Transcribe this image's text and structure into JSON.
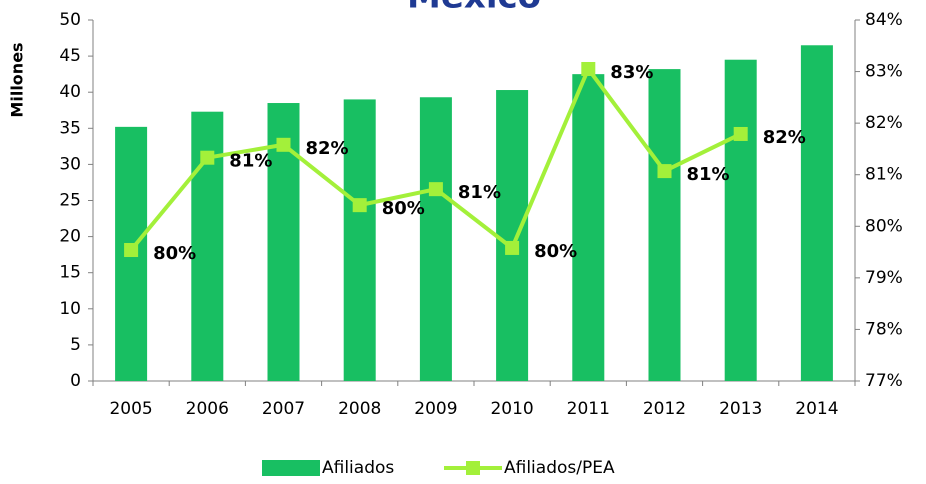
{
  "chart_data": {
    "type": "bar",
    "title": "México",
    "y_label": "Millones",
    "categories": [
      "2005",
      "2006",
      "2007",
      "2008",
      "2009",
      "2010",
      "2011",
      "2012",
      "2013",
      "2014"
    ],
    "series": [
      {
        "name": "Afiliados",
        "type": "bar",
        "color": "#18bf62",
        "values": [
          35.2,
          37.3,
          38.5,
          39.0,
          39.3,
          40.3,
          42.5,
          43.2,
          44.5,
          46.5
        ]
      },
      {
        "name": "Afiliados/PEA",
        "type": "line",
        "axis": "y2",
        "color": "#a3f03a",
        "values": [
          79.54,
          81.33,
          81.58,
          80.41,
          80.72,
          79.58,
          83.05,
          81.07,
          81.79,
          null
        ],
        "value_labels": [
          "80%",
          "81%",
          "82%",
          "80%",
          "81%",
          "80%",
          "83%",
          "81%",
          "82%",
          null
        ]
      }
    ],
    "ylim": [
      0,
      50
    ],
    "yticks": [
      0,
      5,
      10,
      15,
      20,
      25,
      30,
      35,
      40,
      45,
      50
    ],
    "y2lim": [
      77,
      84
    ],
    "y2ticks": [
      {
        "value": 77,
        "label": "77%"
      },
      {
        "value": 78,
        "label": "78%"
      },
      {
        "value": 79,
        "label": "79%"
      },
      {
        "value": 80,
        "label": "80%"
      },
      {
        "value": 81,
        "label": "81%"
      },
      {
        "value": 82,
        "label": "82%"
      },
      {
        "value": 83,
        "label": "83%"
      },
      {
        "value": 84,
        "label": "84%"
      }
    ],
    "legend": "bottom"
  }
}
